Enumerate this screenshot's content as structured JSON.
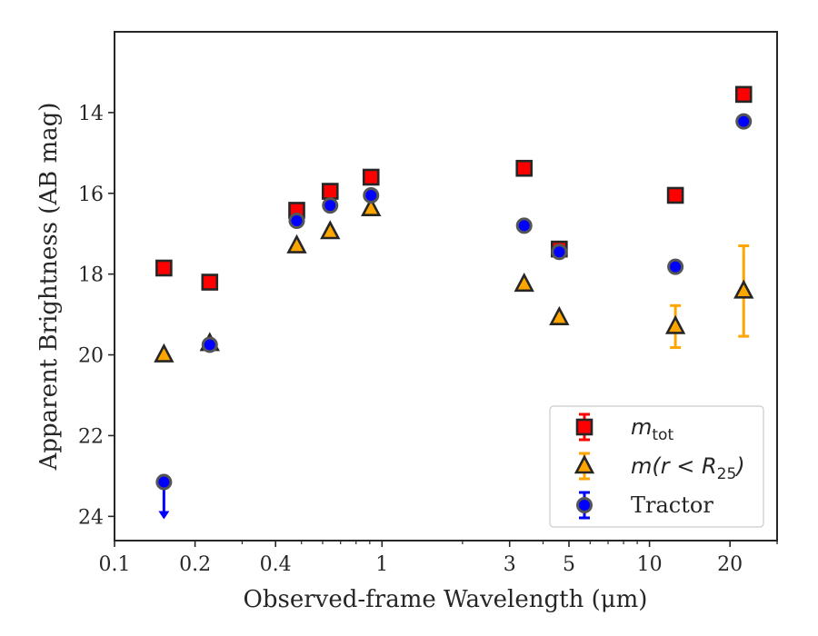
{
  "chart_data": {
    "type": "scatter",
    "title": "",
    "xlabel": "Observed-frame Wavelength (μm)",
    "ylabel": "Apparent Brightness (AB mag)",
    "x_scale": "log",
    "xlim": [
      0.1,
      30
    ],
    "ylim": [
      24.6,
      12.0
    ],
    "y_inverted": true,
    "xticks": [
      {
        "value": 0.1,
        "label": "0.1"
      },
      {
        "value": 0.2,
        "label": "0.2"
      },
      {
        "value": 0.4,
        "label": "0.4"
      },
      {
        "value": 1,
        "label": "1"
      },
      {
        "value": 3,
        "label": "3"
      },
      {
        "value": 5,
        "label": "5"
      },
      {
        "value": 10,
        "label": "10"
      },
      {
        "value": 20,
        "label": "20"
      }
    ],
    "yticks": [
      {
        "value": 14,
        "label": "14"
      },
      {
        "value": 16,
        "label": "16"
      },
      {
        "value": 18,
        "label": "18"
      },
      {
        "value": 20,
        "label": "20"
      },
      {
        "value": 22,
        "label": "22"
      },
      {
        "value": 24,
        "label": "24"
      }
    ],
    "grid": false,
    "legend_position": "lower-right",
    "series": [
      {
        "name": "m_tot",
        "legend_main": "m",
        "legend_sub": "tot",
        "marker": "square",
        "color": "#ff0000",
        "error_color": "#ff0000",
        "points": [
          {
            "x": 0.153,
            "y": 17.85
          },
          {
            "x": 0.227,
            "y": 18.2
          },
          {
            "x": 0.48,
            "y": 16.42
          },
          {
            "x": 0.64,
            "y": 15.95
          },
          {
            "x": 0.91,
            "y": 15.6
          },
          {
            "x": 3.4,
            "y": 15.38
          },
          {
            "x": 4.6,
            "y": 17.38
          },
          {
            "x": 12.5,
            "y": 16.05
          },
          {
            "x": 22.5,
            "y": 13.55
          }
        ]
      },
      {
        "name": "m(r < R25)",
        "legend_main": "m(r < R",
        "legend_sub": "25",
        "legend_close": ")",
        "marker": "triangle",
        "color": "#ffa500",
        "error_color": "#ffa500",
        "points": [
          {
            "x": 0.153,
            "y": 20.0
          },
          {
            "x": 0.227,
            "y": 19.72
          },
          {
            "x": 0.48,
            "y": 17.3
          },
          {
            "x": 0.64,
            "y": 16.95
          },
          {
            "x": 0.91,
            "y": 16.38
          },
          {
            "x": 3.4,
            "y": 18.25
          },
          {
            "x": 4.6,
            "y": 19.08
          },
          {
            "x": 12.5,
            "y": 19.3,
            "err": 0.52
          },
          {
            "x": 22.5,
            "y": 18.42,
            "err": 1.12
          }
        ]
      },
      {
        "name": "Tractor",
        "legend_main": "Tractor",
        "marker": "circle",
        "color": "#0000ff",
        "error_color": "#0000ff",
        "points": [
          {
            "x": 0.153,
            "y": 23.15,
            "upper_limit": true
          },
          {
            "x": 0.227,
            "y": 19.75
          },
          {
            "x": 0.48,
            "y": 16.68
          },
          {
            "x": 0.64,
            "y": 16.3
          },
          {
            "x": 0.91,
            "y": 16.05
          },
          {
            "x": 3.4,
            "y": 16.8
          },
          {
            "x": 4.6,
            "y": 17.45
          },
          {
            "x": 12.5,
            "y": 17.82
          },
          {
            "x": 22.5,
            "y": 14.22
          }
        ]
      }
    ]
  }
}
